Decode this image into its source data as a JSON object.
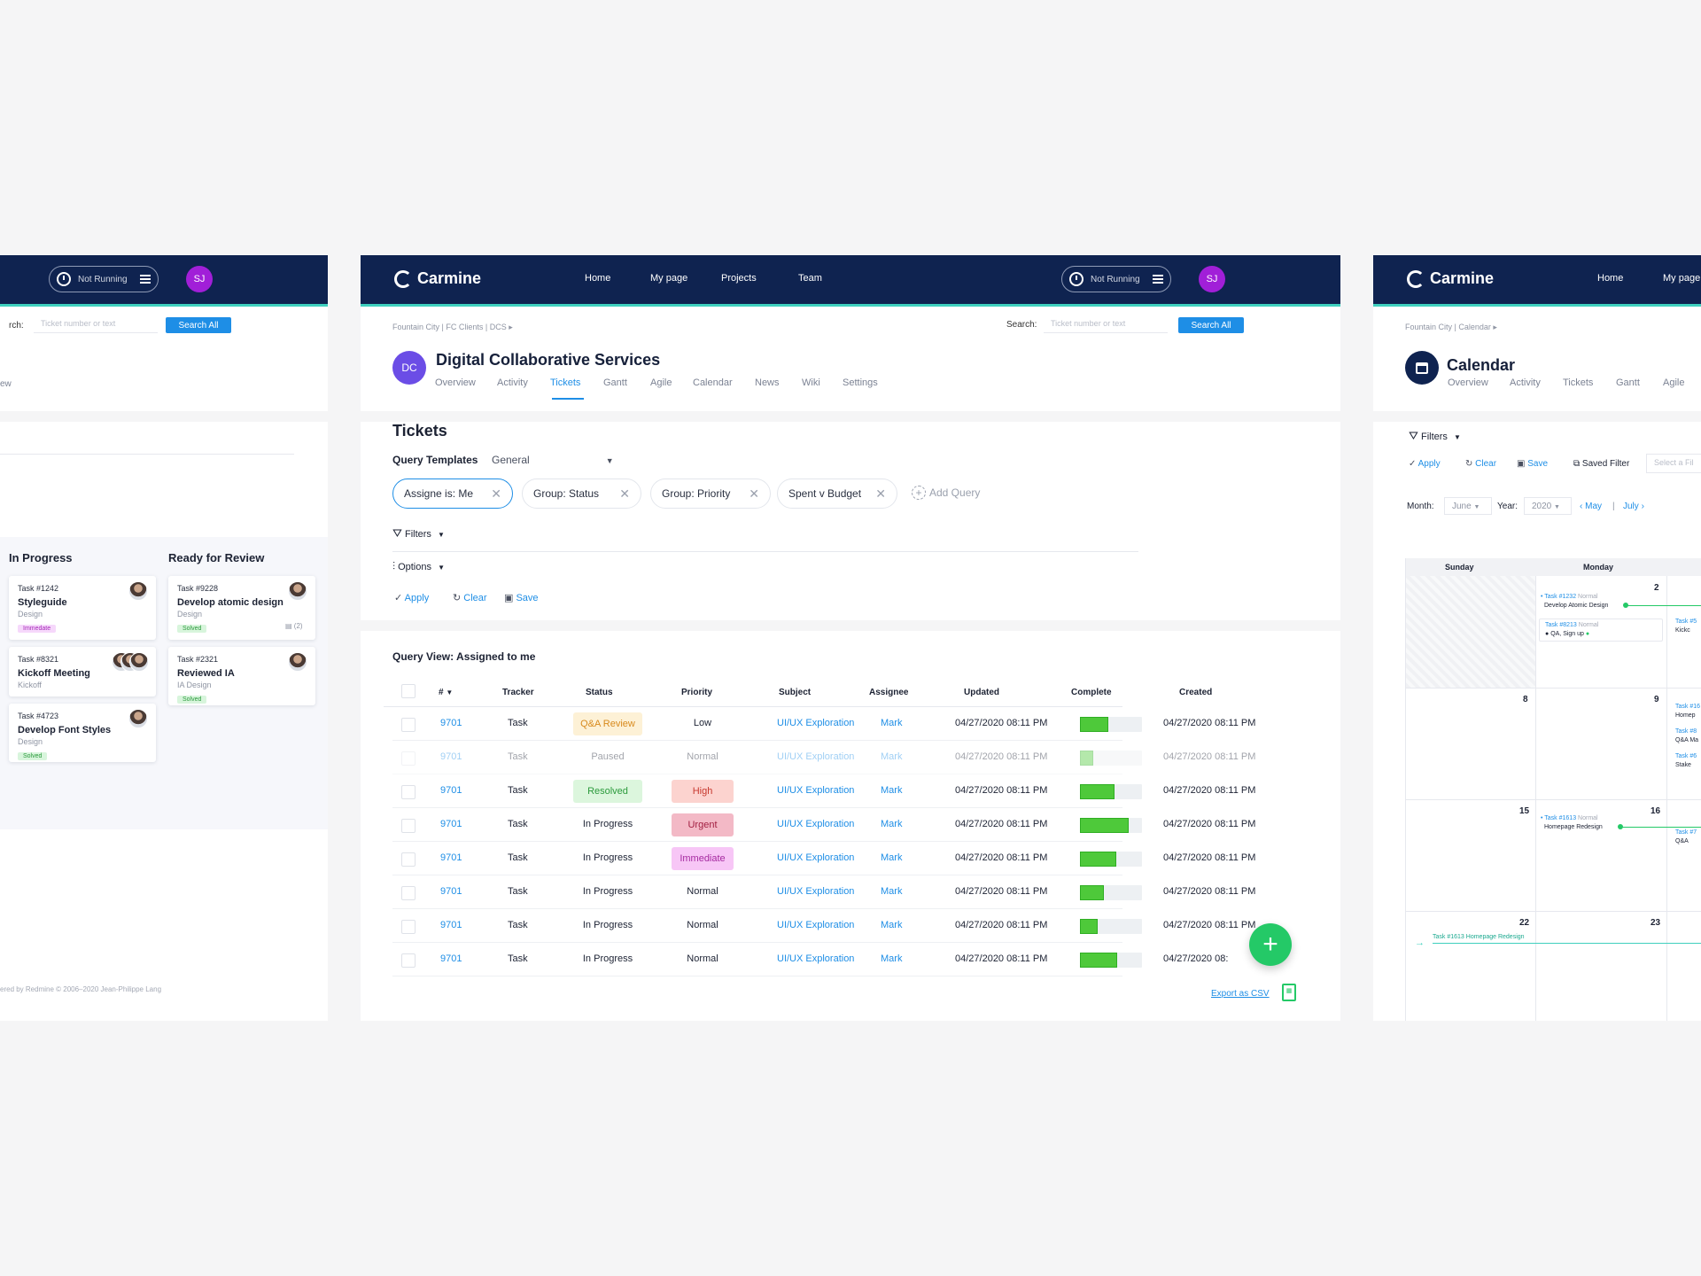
{
  "app": {
    "name": "Carmine",
    "timer_status": "Not Running",
    "user_initials": "SJ"
  },
  "nav": [
    "Home",
    "My page",
    "Projects",
    "Team"
  ],
  "search": {
    "label": "Search:",
    "placeholder": "Ticket number or text",
    "button": "Search All"
  },
  "left_panel": {
    "search_label_fragment": "rch:",
    "tab_fragment": "ew",
    "columns": [
      {
        "title": "In Progress",
        "cards": [
          {
            "task": "Task #1242",
            "name": "Styleguide",
            "type": "Design",
            "tag": "Immedate",
            "tag_color": "#c83ad6"
          },
          {
            "task": "Task #8321",
            "name": "Kickoff Meeting",
            "type": "Kickoff",
            "tag": "",
            "tag_color": ""
          },
          {
            "task": "Task #4723",
            "name": "Develop Font Styles",
            "type": "Design",
            "tag": "Solved",
            "tag_color": "#37b24a"
          }
        ]
      },
      {
        "title": "Ready for Review",
        "cards": [
          {
            "task": "Task #9228",
            "name": "Develop atomic design",
            "type": "Design",
            "tag": "Solved",
            "tag_color": "#37b24a",
            "comments": "(2)"
          },
          {
            "task": "Task #2321",
            "name": "Reviewed IA",
            "type": "IA Design",
            "tag": "Solved",
            "tag_color": "#37b24a"
          }
        ]
      }
    ],
    "footer": "ered by Redmine © 2006–2020 Jean-Philippe Lang"
  },
  "main_panel": {
    "breadcrumb": "Fountain City | FC Clients | DCS",
    "project": {
      "initials": "DC",
      "name": "Digital Collaborative Services"
    },
    "tabs": [
      "Overview",
      "Activity",
      "Tickets",
      "Gantt",
      "Agile",
      "Calendar",
      "News",
      "Wiki",
      "Settings"
    ],
    "active_tab": "Tickets",
    "section_title": "Tickets",
    "query_templates_label": "Query Templates",
    "query_templates_value": "General",
    "chips": [
      "Assigne is: Me",
      "Group: Status",
      "Group: Priority",
      "Spent v Budget"
    ],
    "add_query": "Add Query",
    "filters_label": "Filters",
    "options_label": "Options",
    "actions": {
      "apply": "Apply",
      "clear": "Clear",
      "save": "Save"
    },
    "query_view_title": "Query View: Assigned to me",
    "columns": [
      "#",
      "Tracker",
      "Status",
      "Priority",
      "Subject",
      "Assignee",
      "Updated",
      "Complete",
      "Created"
    ],
    "rows": [
      {
        "id": "9701",
        "tracker": "Task",
        "status": "Q&A Review",
        "status_style": "qa",
        "priority": "Low",
        "priority_style": "",
        "subject": "UI/UX Exploration",
        "assignee": "Mark",
        "updated": "04/27/2020 08:11 PM",
        "complete": 0.45,
        "created": "04/27/2020 08:11 PM",
        "dim": false
      },
      {
        "id": "9701",
        "tracker": "Task",
        "status": "Paused",
        "status_style": "",
        "priority": "Normal",
        "priority_style": "",
        "subject": "UI/UX Exploration",
        "assignee": "Mark",
        "updated": "04/27/2020 08:11 PM",
        "complete": 0.22,
        "created": "04/27/2020 08:11 PM",
        "dim": true
      },
      {
        "id": "9701",
        "tracker": "Task",
        "status": "Resolved",
        "status_style": "resolved",
        "priority": "High",
        "priority_style": "high",
        "subject": "UI/UX Exploration",
        "assignee": "Mark",
        "updated": "04/27/2020 08:11 PM",
        "complete": 0.55,
        "created": "04/27/2020 08:11 PM",
        "dim": false
      },
      {
        "id": "9701",
        "tracker": "Task",
        "status": "In Progress",
        "status_style": "",
        "priority": "Urgent",
        "priority_style": "urgent",
        "subject": "UI/UX Exploration",
        "assignee": "Mark",
        "updated": "04/27/2020 08:11 PM",
        "complete": 0.78,
        "created": "04/27/2020 08:11 PM",
        "dim": false
      },
      {
        "id": "9701",
        "tracker": "Task",
        "status": "In Progress",
        "status_style": "",
        "priority": "Immediate",
        "priority_style": "immediate",
        "subject": "UI/UX Exploration",
        "assignee": "Mark",
        "updated": "04/27/2020 08:11 PM",
        "complete": 0.58,
        "created": "04/27/2020 08:11 PM",
        "dim": false
      },
      {
        "id": "9701",
        "tracker": "Task",
        "status": "In Progress",
        "status_style": "",
        "priority": "Normal",
        "priority_style": "",
        "subject": "UI/UX Exploration",
        "assignee": "Mark",
        "updated": "04/27/2020 08:11 PM",
        "complete": 0.38,
        "created": "04/27/2020 08:11 PM",
        "dim": false
      },
      {
        "id": "9701",
        "tracker": "Task",
        "status": "In Progress",
        "status_style": "",
        "priority": "Normal",
        "priority_style": "",
        "subject": "UI/UX Exploration",
        "assignee": "Mark",
        "updated": "04/27/2020 08:11 PM",
        "complete": 0.28,
        "created": "04/27/2020 08:11 PM",
        "dim": false
      },
      {
        "id": "9701",
        "tracker": "Task",
        "status": "In Progress",
        "status_style": "",
        "priority": "Normal",
        "priority_style": "",
        "subject": "UI/UX Exploration",
        "assignee": "Mark",
        "updated": "04/27/2020 08:11 PM",
        "complete": 0.6,
        "created": "04/27/2020 08:",
        "dim": false
      }
    ],
    "export_label": "Export as CSV"
  },
  "right_panel": {
    "breadcrumb": "Fountain City | Calendar",
    "title": "Calendar",
    "tabs": [
      "Overview",
      "Activity",
      "Tickets",
      "Gantt",
      "Agile"
    ],
    "filters_label": "Filters",
    "actions": {
      "apply": "Apply",
      "clear": "Clear",
      "save": "Save",
      "saved_filter": "Saved Filter",
      "select_placeholder": "Select a Fil"
    },
    "month_label": "Month:",
    "month_value": "June",
    "year_label": "Year:",
    "year_value": "2020",
    "prev_month": "May",
    "next_month": "July",
    "day_headers": [
      "Sunday",
      "Monday"
    ],
    "week_nums": [
      [
        "",
        "2"
      ],
      [
        "8",
        "9"
      ],
      [
        "15",
        "16"
      ],
      [
        "22",
        "23"
      ]
    ],
    "events": [
      {
        "task": "Task #1232",
        "priority": "Normal",
        "name": "Develop Atomic Design"
      },
      {
        "task": "Task #8213",
        "priority": "Normal",
        "name": "QA, Sign up"
      },
      {
        "task": "Task #1613",
        "priority": "Normal",
        "name": "Homepage Redesign"
      },
      {
        "task": "Task #1613",
        "priority": "",
        "name": "Homepage Redesign"
      }
    ],
    "edge_fragments": [
      "Task #5",
      "Kickc",
      "Task #16",
      "Homep",
      "Task #8",
      "Q&A Ma",
      "Task #6",
      "Stake",
      "Task #7",
      "Q&A"
    ]
  },
  "colors": {
    "navy": "#0f2350",
    "accent": "#1e8ee6",
    "teal": "#3fd0be",
    "green": "#24c967"
  }
}
